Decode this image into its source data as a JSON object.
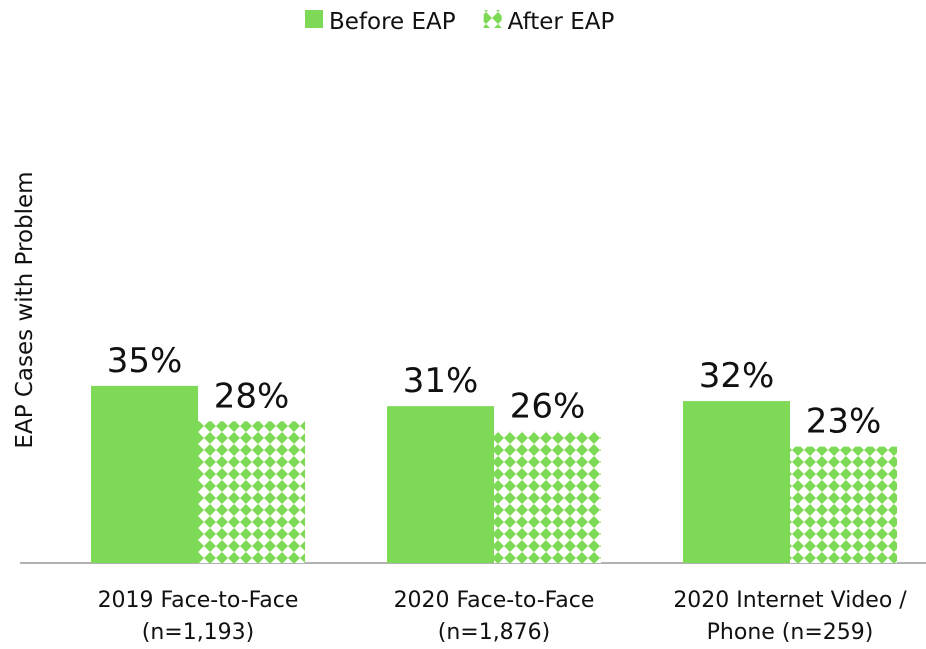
{
  "chart_data": {
    "type": "bar",
    "y_label": "EAP Cases with Problem",
    "categories": [
      "2019 Face-to-Face (n=1,193)",
      "2020 Face-to-Face (n=1,876)",
      "2020 Internet Video / Phone (n=259)"
    ],
    "series": [
      {
        "name": "Before EAP",
        "color": "#7ed957",
        "values": [
          35,
          31,
          32
        ],
        "value_labels": [
          "35%",
          "31%",
          "32%"
        ]
      },
      {
        "name": "After EAP",
        "color": "#7ed957",
        "values": [
          28,
          26,
          23
        ],
        "value_labels": [
          "28%",
          "26%",
          "23%"
        ]
      }
    ],
    "ylim": [
      0,
      100
    ]
  }
}
